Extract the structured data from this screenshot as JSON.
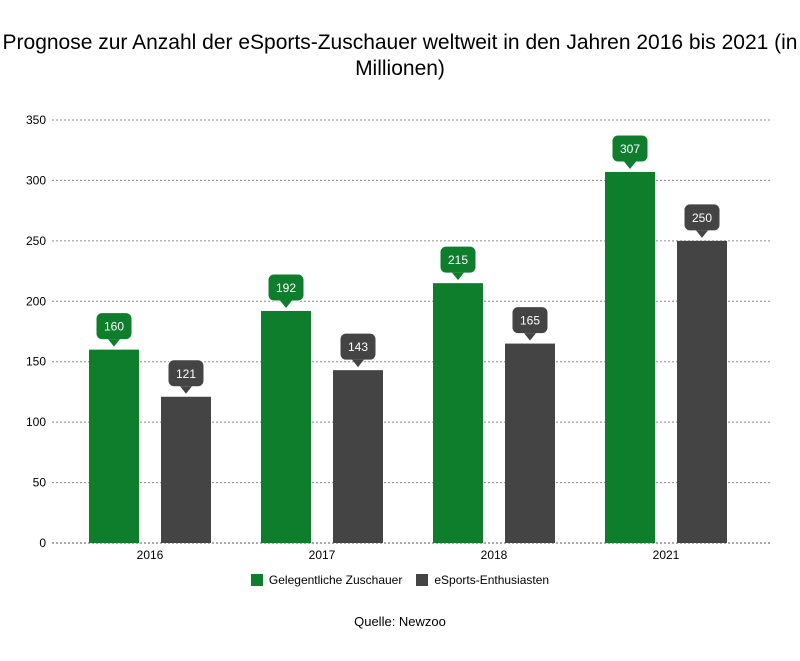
{
  "chart_data": {
    "type": "bar",
    "title": "Prognose zur Anzahl der eSports-Zuschauer weltweit in den Jahren 2016 bis 2021 (in Millionen)",
    "categories": [
      "2016",
      "2017",
      "2018",
      "2021"
    ],
    "series": [
      {
        "name": "Gelegentliche Zuschauer",
        "values": [
          160,
          192,
          215,
          307
        ],
        "color": "#0e7e2c"
      },
      {
        "name": "eSports-Enthusiasten",
        "values": [
          121,
          143,
          165,
          250
        ],
        "color": "#444444"
      }
    ],
    "ylim": [
      0,
      350
    ],
    "yticks": [
      0,
      50,
      100,
      150,
      200,
      250,
      300,
      350
    ],
    "grid": true,
    "legend_position": "bottom",
    "source": "Quelle: Newzoo"
  }
}
